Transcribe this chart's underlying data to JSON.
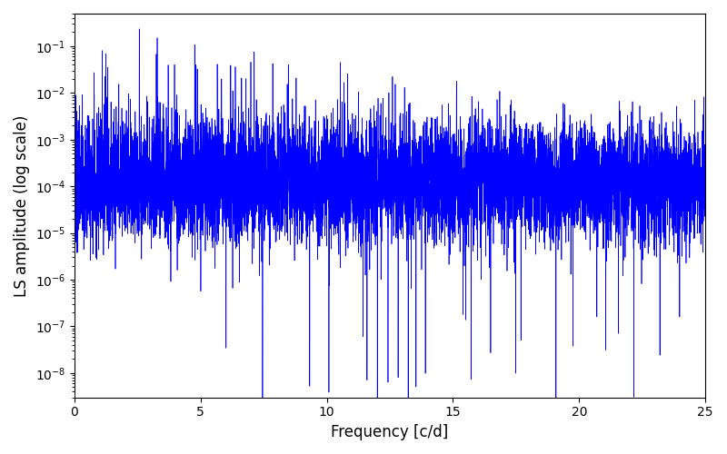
{
  "title": "",
  "xlabel": "Frequency [c/d]",
  "ylabel": "LS amplitude (log scale)",
  "xlim": [
    0,
    25
  ],
  "ylim": [
    3e-09,
    0.5
  ],
  "line_color": "blue",
  "line_width": 0.5,
  "figsize": [
    8.0,
    5.0
  ],
  "dpi": 100,
  "freq_min": 0.0,
  "freq_max": 25.0,
  "n_points": 8000,
  "seed": 12345,
  "noise_floor": 0.0001,
  "noise_spread": 1.5,
  "peak_decay": 0.18,
  "max_peak_low": 0.15,
  "max_peak_high": 0.001,
  "n_tall_peaks": 120,
  "n_deep_nulls": 30
}
